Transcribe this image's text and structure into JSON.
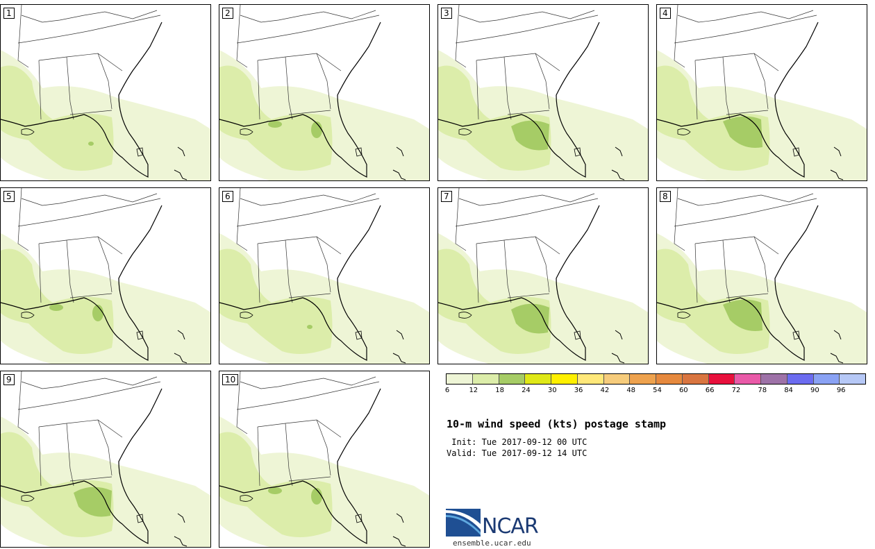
{
  "panels": [
    {
      "label": "1",
      "variant": 0
    },
    {
      "label": "2",
      "variant": 1
    },
    {
      "label": "3",
      "variant": 2
    },
    {
      "label": "4",
      "variant": 3
    },
    {
      "label": "5",
      "variant": 1
    },
    {
      "label": "6",
      "variant": 0
    },
    {
      "label": "7",
      "variant": 2
    },
    {
      "label": "8",
      "variant": 3
    },
    {
      "label": "9",
      "variant": 2
    },
    {
      "label": "10",
      "variant": 1
    }
  ],
  "legend": {
    "ticks": [
      "6",
      "12",
      "18",
      "24",
      "30",
      "36",
      "42",
      "48",
      "54",
      "60",
      "66",
      "72",
      "78",
      "84",
      "90",
      "96"
    ],
    "colors": [
      "#eef5d6",
      "#dcedaa",
      "#a6cc66",
      "#dfe818",
      "#fff000",
      "#ffe87a",
      "#f6cc7c",
      "#eea24e",
      "#e6893e",
      "#d97540",
      "#e8103c",
      "#e95aa8",
      "#9e72a8",
      "#6c6cf0",
      "#8aa2f4",
      "#b6c8f6"
    ]
  },
  "header": {
    "title": "10-m wind speed (kts) postage stamp",
    "init": " Init: Tue 2017-09-12 00 UTC",
    "valid": "Valid: Tue 2017-09-12 14 UTC"
  },
  "logo": {
    "word": "NCAR",
    "site": "ensemble.ucar.edu"
  }
}
